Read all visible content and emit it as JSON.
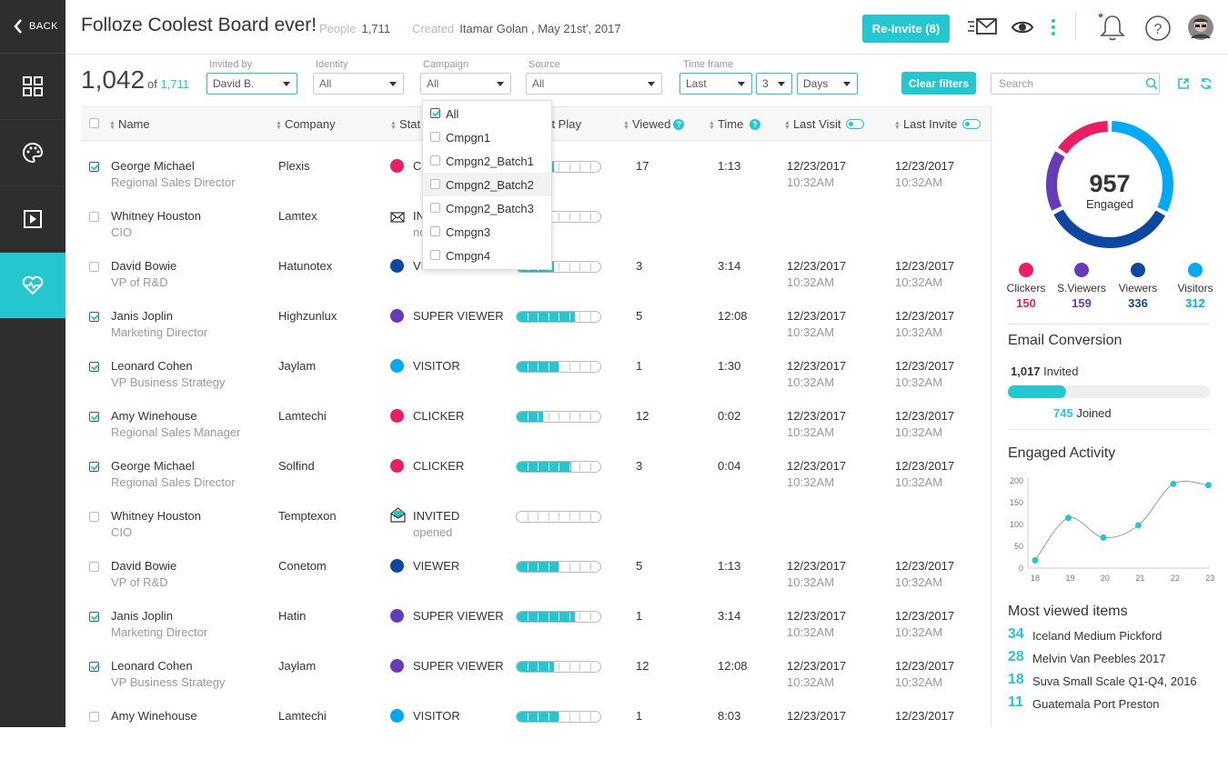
{
  "sidebar": {
    "back_label": "BACK"
  },
  "header": {
    "title": "Folloze Coolest Board ever!",
    "people_label": "People",
    "people_value": "1,711",
    "created_label": "Created",
    "created_value": "Itamar Golan , May 21st', 2017",
    "reinvite_label": "Re-Invite  (8)"
  },
  "filters": {
    "count": "1,042",
    "of_label": "of",
    "total": "1,711",
    "invited_by": {
      "label": "Invited by",
      "value": "David B."
    },
    "identity": {
      "label": "Identity",
      "value": "All"
    },
    "campaign": {
      "label": "Campaign",
      "value": "All"
    },
    "source": {
      "label": "Source",
      "value": "All"
    },
    "timeframe": {
      "label": "Time frame",
      "mode": "Last",
      "amount": "3",
      "unit": "Days"
    },
    "clear_label": "Clear filters",
    "search_placeholder": "Search"
  },
  "table": {
    "headers": {
      "name": "Name",
      "company": "Company",
      "status": "Stat",
      "play": "ent Play",
      "viewed": "Viewed",
      "time": "Time",
      "last_visit": "Last Visit",
      "last_invite": "Last Invite"
    },
    "rows": [
      {
        "checked": true,
        "name": "George Michael",
        "role": "Regional Sales Director",
        "company": "Plexis",
        "status": "CL",
        "status2": "",
        "kind": "dot",
        "dot": "#e91e63",
        "play": 0.45,
        "viewed": "17",
        "time": "1:13",
        "visit": "12/23/2017",
        "visit_h": "10:32AM",
        "invite": "12/23/2017",
        "invite_h": "10:32AM"
      },
      {
        "checked": false,
        "name": "Whitney Houston",
        "role": "CIO",
        "company": "Lamtex",
        "status": "IN",
        "status2": "no",
        "kind": "mail",
        "dot": "",
        "play": 0,
        "viewed": "",
        "time": "",
        "visit": "",
        "visit_h": "",
        "invite": "",
        "invite_h": ""
      },
      {
        "checked": false,
        "name": "David Bowie",
        "role": "VP of R&D",
        "company": "Hatunotex",
        "status": "VI",
        "status2": "",
        "kind": "dot",
        "dot": "#0d47a1",
        "play": 0.45,
        "viewed": "3",
        "time": "3:14",
        "visit": "12/23/2017",
        "visit_h": "10:32AM",
        "invite": "12/23/2017",
        "invite_h": "10:32AM"
      },
      {
        "checked": true,
        "name": "Janis Joplin",
        "role": "Marketing Director",
        "company": "Highzunlux",
        "status": "SUPER VIEWER",
        "status2": "",
        "kind": "dot",
        "dot": "#673ab7",
        "play": 0.7,
        "viewed": "5",
        "time": "12:08",
        "visit": "12/23/2017",
        "visit_h": "10:32AM",
        "invite": "12/23/2017",
        "invite_h": "10:32AM"
      },
      {
        "checked": true,
        "name": "Leonard Cohen",
        "role": "VP Business Strategy",
        "company": "Jaylam",
        "status": "VISITOR",
        "status2": "",
        "kind": "dot",
        "dot": "#03a9f4",
        "play": 0.5,
        "viewed": "1",
        "time": "1:30",
        "visit": "12/23/2017",
        "visit_h": "10:32AM",
        "invite": "12/23/2017",
        "invite_h": "10:32AM"
      },
      {
        "checked": true,
        "name": "Amy Winehouse",
        "role": "Regional Sales Manager",
        "company": "Lamtechi",
        "status": "CLICKER",
        "status2": "",
        "kind": "dot",
        "dot": "#e91e63",
        "play": 0.32,
        "viewed": "12",
        "time": "0:02",
        "visit": "12/23/2017",
        "visit_h": "10:32AM",
        "invite": "12/23/2017",
        "invite_h": "10:32AM"
      },
      {
        "checked": true,
        "name": "George Michael",
        "role": "Regional Sales Director",
        "company": "Solfind",
        "status": "CLICKER",
        "status2": "",
        "kind": "dot",
        "dot": "#e91e63",
        "play": 0.65,
        "viewed": "3",
        "time": "0:04",
        "visit": "12/23/2017",
        "visit_h": "10:32AM",
        "invite": "12/23/2017",
        "invite_h": "10:32AM"
      },
      {
        "checked": false,
        "name": "Whitney Houston",
        "role": "CIO",
        "company": "Temptexon",
        "status": "INVITED",
        "status2": "opened",
        "kind": "mailopen",
        "dot": "",
        "play": 0,
        "viewed": "",
        "time": "",
        "visit": "",
        "visit_h": "",
        "invite": "",
        "invite_h": ""
      },
      {
        "checked": false,
        "name": "David Bowie",
        "role": "VP of R&D",
        "company": "Conetom",
        "status": "VIEWER",
        "status2": "",
        "kind": "dot",
        "dot": "#0d47a1",
        "play": 0.5,
        "viewed": "5",
        "time": "1:13",
        "visit": "12/23/2017",
        "visit_h": "10:32AM",
        "invite": "12/23/2017",
        "invite_h": "10:32AM"
      },
      {
        "checked": true,
        "name": "Janis Joplin",
        "role": "Marketing Director",
        "company": "Hatin",
        "status": "SUPER VIEWER",
        "status2": "",
        "kind": "dot",
        "dot": "#673ab7",
        "play": 0.7,
        "viewed": "1",
        "time": "3:14",
        "visit": "12/23/2017",
        "visit_h": "10:32AM",
        "invite": "12/23/2017",
        "invite_h": "10:32AM"
      },
      {
        "checked": true,
        "name": "Leonard Cohen",
        "role": "VP Business Strategy",
        "company": "Jaylam",
        "status": "SUPER VIEWER",
        "status2": "",
        "kind": "dot",
        "dot": "#673ab7",
        "play": 0.45,
        "viewed": "12",
        "time": "12:08",
        "visit": "12/23/2017",
        "visit_h": "10:32AM",
        "invite": "12/23/2017",
        "invite_h": "10:32AM"
      },
      {
        "checked": false,
        "name": "Amy Winehouse",
        "role": "",
        "company": "Lamtechi",
        "status": "VISITOR",
        "status2": "",
        "kind": "dot",
        "dot": "#03a9f4",
        "play": 0.5,
        "viewed": "1",
        "time": "8:03",
        "visit": "12/23/2017",
        "visit_h": "",
        "invite": "12/23/2017",
        "invite_h": ""
      }
    ]
  },
  "campaign_dropdown": {
    "items": [
      {
        "label": "All",
        "checked": true
      },
      {
        "label": "Cmpgn1",
        "checked": false
      },
      {
        "label": "Cmpgn2_Batch1",
        "checked": false
      },
      {
        "label": "Cmpgn2_Batch2",
        "checked": false,
        "highlight": true
      },
      {
        "label": "Cmpgn2_Batch3",
        "checked": false
      },
      {
        "label": "Cmpgn3",
        "checked": false
      },
      {
        "label": "Cmpgn4",
        "checked": false
      }
    ]
  },
  "summary": {
    "engaged_value": "957",
    "engaged_label": "Engaged",
    "donut": [
      {
        "name": "Clickers",
        "value": 150,
        "color": "#e91e63"
      },
      {
        "name": "S.Viewers",
        "value": 159,
        "color": "#673ab7"
      },
      {
        "name": "Viewers",
        "value": 336,
        "color": "#0d47a1"
      },
      {
        "name": "Visitors",
        "value": 312,
        "color": "#03a9f4"
      }
    ],
    "legend": [
      {
        "name": "Clickers",
        "value": "150",
        "color": "#e91e63"
      },
      {
        "name": "S.Viewers",
        "value": "159",
        "color": "#673ab7"
      },
      {
        "name": "Viewers",
        "value": "336",
        "color": "#0d47a1"
      },
      {
        "name": "Visitors",
        "value": "312",
        "color": "#03a9f4"
      }
    ]
  },
  "email_conversion": {
    "title": "Email Conversion",
    "invited_count": "1,017",
    "invited_label": "Invited",
    "joined_count": "745",
    "joined_label": "Joined",
    "progress": 0.29
  },
  "chart_data": {
    "type": "line",
    "title": "Engaged Activity",
    "x": [
      "18",
      "19",
      "20",
      "21",
      "22",
      "23"
    ],
    "series": [
      {
        "values": [
          18,
          115,
          70,
          98,
          193,
          190
        ]
      }
    ],
    "points_x": [
      18.0,
      18.95,
      19.95,
      20.95,
      21.95,
      22.95
    ],
    "yticks": [
      "200",
      "150",
      "100",
      "50",
      "0"
    ],
    "ylim": [
      0,
      200
    ],
    "color": "#26c6d0"
  },
  "most_viewed": {
    "title": "Most viewed items",
    "items": [
      {
        "count": "34",
        "label": "Iceland Medium Pickford"
      },
      {
        "count": "28",
        "label": "Melvin Van Peebles 2017"
      },
      {
        "count": "18",
        "label": "Suva Small Scale Q1-Q4, 2016"
      },
      {
        "count": "11",
        "label": "Guatemala Port Preston"
      }
    ]
  }
}
